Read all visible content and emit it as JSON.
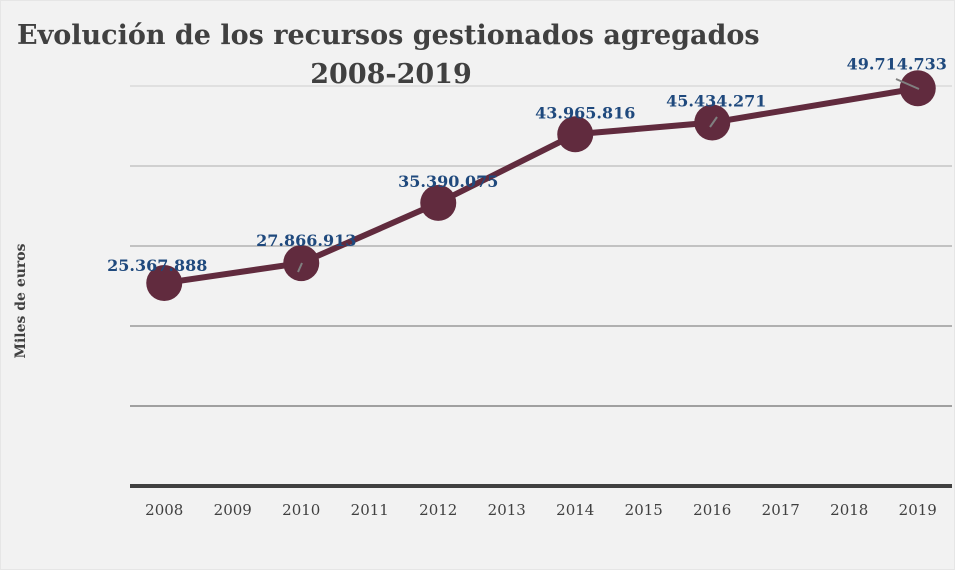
{
  "chart_data": {
    "type": "line",
    "title_lines": [
      "Evolución de los recursos gestionados agregados",
      "2008-2019"
    ],
    "xlabel": "",
    "ylabel": "Miles de euros",
    "categories": [
      "2008",
      "2009",
      "2010",
      "2011",
      "2012",
      "2013",
      "2014",
      "2015",
      "2016",
      "2017",
      "2018",
      "2019"
    ],
    "series": [
      {
        "name": "Recursos gestionados agregados",
        "color": "#612b3e",
        "points": [
          {
            "x": "2008",
            "y": 25367888,
            "label": "25.367.888"
          },
          {
            "x": "2010",
            "y": 27866913,
            "label": "27.866.913"
          },
          {
            "x": "2012",
            "y": 35390075,
            "label": "35.390.075"
          },
          {
            "x": "2014",
            "y": 43965816,
            "label": "43.965.816"
          },
          {
            "x": "2016",
            "y": 45434271,
            "label": "45.434.271"
          },
          {
            "x": "2019",
            "y": 49714733,
            "label": "49.714.733"
          }
        ]
      }
    ],
    "ylim": [
      0,
      50000000
    ],
    "ygrid_step": 10000000,
    "y_tick_labels_shown": false,
    "grid": true,
    "legend": "none",
    "colors": {
      "background": "#f2f2f2",
      "title": "#404040",
      "data_label": "#1f497d",
      "axis": "#404040",
      "leader_line": "#808080"
    }
  }
}
